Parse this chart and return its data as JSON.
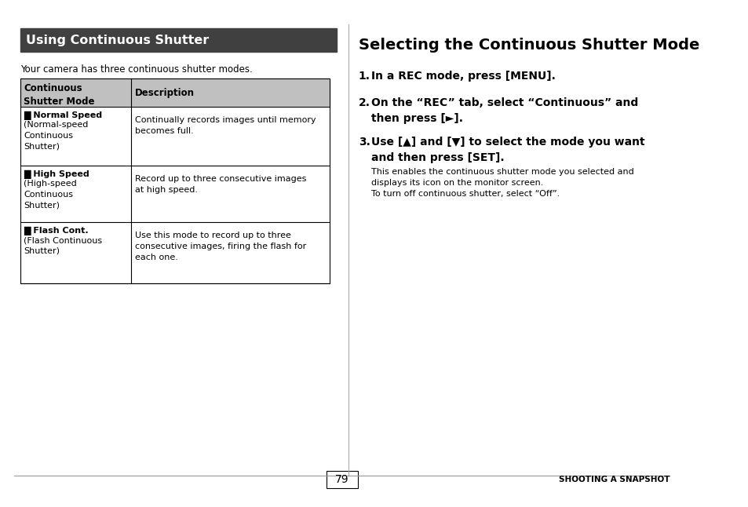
{
  "bg_color": "#ffffff",
  "page_number": "79",
  "footer_right": "SHOOTING A SNAPSHOT",
  "left_section": {
    "title": "Using Continuous Shutter",
    "title_bg": "#404040",
    "title_fg": "#ffffff",
    "subtitle": "Your camera has three continuous shutter modes.",
    "table": {
      "header_bg": "#c0c0c0",
      "col1_header": "Continuous\nShutter Mode",
      "col2_header": "Description",
      "rows": [
        {
          "col1_lines": [
            "█ Normal Speed",
            "(Normal-speed",
            "Continuous",
            "Shutter)"
          ],
          "col2_lines": [
            "Continually records images until memory",
            "becomes full."
          ]
        },
        {
          "col1_lines": [
            "█ High Speed",
            "(High-speed",
            "Continuous",
            "Shutter)"
          ],
          "col2_lines": [
            "Record up to three consecutive images",
            "at high speed."
          ]
        },
        {
          "col1_lines": [
            "█ Flash Cont.",
            "(Flash Continuous",
            "Shutter)"
          ],
          "col2_lines": [
            "Use this mode to record up to three",
            "consecutive images, firing the flash for",
            "each one."
          ]
        }
      ]
    }
  },
  "right_section": {
    "title": "Selecting the Continuous Shutter Mode",
    "steps": [
      {
        "number": "1.",
        "bold_text": "In a REC mode, press [MENU].",
        "normal_text": ""
      },
      {
        "number": "2.",
        "bold_text": "On the “REC” tab, select “Continuous” and\nthen press [►].",
        "normal_text": ""
      },
      {
        "number": "3.",
        "bold_text": "Use [▲] and [▼] to select the mode you want\nand then press [SET].",
        "normal_text": "This enables the continuous shutter mode you selected and\ndisplays its icon on the monitor screen.\nTo turn off continuous shutter, select “Off”."
      }
    ]
  }
}
